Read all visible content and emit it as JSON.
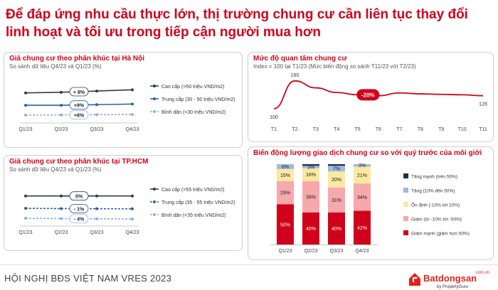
{
  "title": {
    "line1": "Để đáp ứng nhu cầu thực lớn, thị trường chung cư cần liên tục thay đổi",
    "line2": "linh hoạt và tối ưu trong tiếp cận người mua hơn"
  },
  "colors": {
    "red": "#d0021b",
    "navy": "#2b3a55",
    "blue": "#6b8fc9",
    "lightblue": "#9fbbe0"
  },
  "footer": {
    "text": "HỘI NGHỊ BĐS VIỆT NAM VRES 2023"
  },
  "brand": {
    "suffix": ".com.vn",
    "name": "Batdongsan",
    "byline": "by PropertyGuru",
    "logo_icon": "house-arrow-icon"
  },
  "chart_data": [
    {
      "type": "line",
      "title": "Giá chung cư theo phân khúc tại Hà Nội",
      "subtitle": "So sánh dữ liệu Q4/23 và Q1/23 (%)",
      "categories": [
        "Q1/23",
        "Q2/23",
        "Q3/23",
        "Q4/23"
      ],
      "series": [
        {
          "name": "Cao cấp (>50 triệu VND/m2)",
          "values": [
            3.0,
            3.05,
            3.15,
            3.25
          ],
          "change_label": "+ 8%",
          "style": "solid",
          "color": "#2b3a55"
        },
        {
          "name": "Trung cấp (30 - 50 triệu VND/m2)",
          "values": [
            2.0,
            2.0,
            2.05,
            2.1
          ],
          "change_label": "+9%",
          "style": "solid",
          "color": "#2e5fa8"
        },
        {
          "name": "Bình dân (<30 triệu VND/m2)",
          "values": [
            1.2,
            1.22,
            1.24,
            1.25
          ],
          "change_label": "+6%",
          "style": "dashed",
          "color": "#8fb0dd"
        }
      ],
      "legend_position": "right",
      "grid": false
    },
    {
      "type": "line",
      "title": "Giá chung cư theo phân khúc tại TP.HCM",
      "subtitle": "So sánh dữ liệu Q4/23 và Q1/23 (%)",
      "categories": [
        "Q1/23",
        "Q2/23",
        "Q3/23",
        "Q4/23"
      ],
      "series": [
        {
          "name": "Cao cấp (>55 triệu VND/m2)",
          "values": [
            3.0,
            3.0,
            3.0,
            3.0
          ],
          "change_label": "0%",
          "style": "solid",
          "color": "#2b3a55"
        },
        {
          "name": "Trung cấp (35 - 55 triệu VND/m2)",
          "values": [
            2.0,
            1.98,
            1.97,
            1.96
          ],
          "change_label": "- 1%",
          "style": "dashed",
          "color": "#2e5fa8"
        },
        {
          "name": "Bình dân (<35 triệu VND/m2)",
          "values": [
            1.2,
            1.17,
            1.15,
            1.14
          ],
          "change_label": "- 4%",
          "style": "dashed",
          "color": "#8fb0dd"
        }
      ],
      "legend_position": "right",
      "grid": false
    },
    {
      "type": "line",
      "title": "Mức độ quan tâm chung cư",
      "subtitle": "Index = 100 tại T1/23 (Mức biến động so sánh T11/23 với T2/23)",
      "categories": [
        "T1",
        "T2",
        "T3",
        "T4",
        "T5",
        "T6",
        "T7",
        "T8",
        "T9",
        "T10",
        "T11"
      ],
      "series": [
        {
          "name": "",
          "values": [
            100,
            160,
            145,
            135,
            130,
            128,
            134,
            132,
            131,
            130,
            128
          ],
          "color": "#d0021b"
        }
      ],
      "point_labels": [
        {
          "index": 0,
          "text": "100"
        },
        {
          "index": 1,
          "text": "160"
        },
        {
          "index": 10,
          "text": "128"
        }
      ],
      "badge": "-20%",
      "ylim": [
        80,
        175
      ],
      "grid": false
    },
    {
      "type": "bar",
      "stacked": true,
      "percent": true,
      "title": "Biến động lượng giao dịch chung cư so với quý trước của môi giới",
      "categories": [
        "Q1/23",
        "Q2/23",
        "Q3/23",
        "Q4/23"
      ],
      "series": [
        {
          "name": "Giảm mạnh (giảm hơn 50%)",
          "color": "#d0021b",
          "values": [
            50,
            40,
            40,
            42
          ],
          "labels": [
            "50%",
            "40%",
            "40%",
            "42%"
          ]
        },
        {
          "name": "Giảm (từ -10% tới -50%)",
          "color": "#f7a8ad",
          "values": [
            29,
            39,
            31,
            34
          ],
          "labels": [
            "29%",
            "39%",
            "31%",
            "34%"
          ]
        },
        {
          "name": "Ổn định (-10% tới 10%)",
          "color": "#fbe9a0",
          "values": [
            15,
            16,
            20,
            21
          ],
          "labels": [
            "15%",
            "16%",
            "20%",
            "21%"
          ]
        },
        {
          "name": "Tăng (10% đến 50%)",
          "color": "#9fb9e2",
          "values": [
            6,
            3,
            7,
            3
          ],
          "labels": [
            "6%",
            "3%",
            "7%",
            "3%"
          ]
        },
        {
          "name": "Tăng mạnh (trên 50%)",
          "color": "#1d2f4d",
          "values": [
            0,
            2,
            2,
            0
          ],
          "labels": [
            "",
            "",
            "",
            ""
          ]
        }
      ],
      "ylim": [
        0,
        100
      ],
      "legend_position": "right",
      "grid": false
    }
  ]
}
